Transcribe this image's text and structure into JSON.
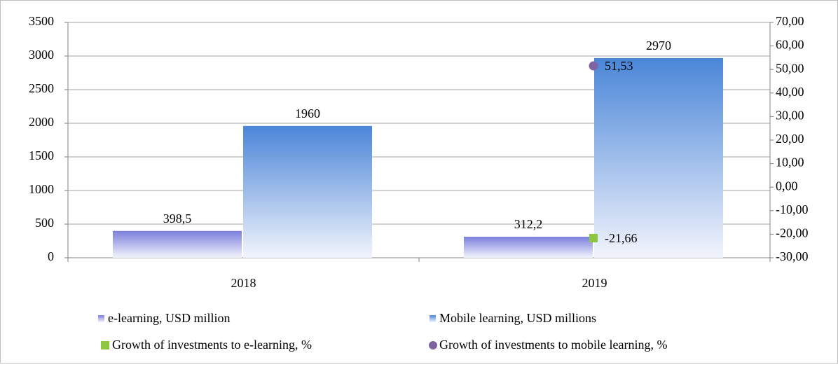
{
  "chart_data": {
    "type": "bar",
    "categories": [
      "2018",
      "2019"
    ],
    "series": [
      {
        "name": "e-learning, USD million",
        "color": "#7b7fdc",
        "values": [
          398.5,
          312.2
        ],
        "value_labels": [
          "398,5",
          "312,2"
        ]
      },
      {
        "name": "Mobile learning, USD millions",
        "color": "#4a86d8",
        "values": [
          1960,
          2970
        ]
      },
      {
        "name": "Growth of investments to e-learning, %",
        "type": "scatter",
        "marker": "square",
        "axis": "y2",
        "color": "#8dc63f",
        "values": [
          null,
          -21.66
        ],
        "value_labels": [
          null,
          "-21,66"
        ]
      },
      {
        "name": "Growth of investments to mobile learning, %",
        "type": "scatter",
        "marker": "circle",
        "axis": "y2",
        "color": "#8064a2",
        "values": [
          null,
          51.53
        ],
        "value_labels": [
          null,
          "51,53"
        ]
      }
    ],
    "ylim": [
      0,
      3500
    ],
    "yticks": [
      0,
      500,
      1000,
      1500,
      2000,
      2500,
      3000,
      3500
    ],
    "y2lim": [
      -30,
      70
    ],
    "y2ticks": [
      {
        "value": -30,
        "label": "-30,00"
      },
      {
        "value": -20,
        "label": "-20,00"
      },
      {
        "value": -10,
        "label": "-10,00"
      },
      {
        "value": 0,
        "label": "0,00"
      },
      {
        "value": 10,
        "label": "10,00"
      },
      {
        "value": 20,
        "label": "20,00"
      },
      {
        "value": 30,
        "label": "30,00"
      },
      {
        "value": 40,
        "label": "40,00"
      },
      {
        "value": 50,
        "label": "50,00"
      },
      {
        "value": 60,
        "label": "60,00"
      },
      {
        "value": 70,
        "label": "70,00"
      }
    ],
    "grid": true,
    "legend": "bottom"
  }
}
